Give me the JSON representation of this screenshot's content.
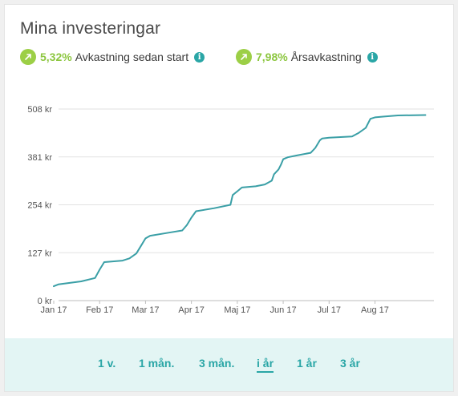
{
  "card": {
    "title": "Mina investeringar",
    "metrics": [
      {
        "value": "5,32%",
        "label": "Avkastning sedan start",
        "icon": "arrow-up-right-icon",
        "info_icon": "info-icon"
      },
      {
        "value": "7,98%",
        "label": "Årsavkastning",
        "icon": "arrow-up-right-icon",
        "info_icon": "info-icon"
      }
    ]
  },
  "colors": {
    "accent": "#2aa6a6",
    "positive": "#8cc63f",
    "line": "#3a9fa6",
    "footer_bg": "#e3f5f4"
  },
  "chart_data": {
    "type": "line",
    "ylim": [
      0,
      508
    ],
    "y_ticks": [
      0,
      127,
      254,
      381,
      508
    ],
    "y_tick_labels": [
      "0 kr",
      "127 kr",
      "254 kr",
      "381 kr",
      "508 kr"
    ],
    "x_tick_labels": [
      "Jan 17",
      "Feb 17",
      "Mar 17",
      "Apr 17",
      "Maj 17",
      "Jun 17",
      "Jul 17",
      "Aug 17"
    ],
    "x_range": [
      0,
      8.18
    ],
    "grid": true,
    "series": [
      {
        "x": [
          0,
          0.1,
          0.6,
          0.9,
          1.0,
          1.1,
          1.5,
          1.65,
          1.8,
          1.9,
          2.0,
          2.1,
          2.5,
          2.8,
          2.9,
          3.0,
          3.1,
          3.5,
          3.85,
          3.9,
          4.0,
          4.1,
          4.4,
          4.6,
          4.75,
          4.8,
          4.9,
          4.95,
          5.0,
          5.1,
          5.3,
          5.6,
          5.7,
          5.8,
          5.85,
          6.0,
          6.5,
          6.65,
          6.8,
          6.9,
          7.0,
          7.2,
          7.5,
          8.1
        ],
        "values": [
          38,
          43,
          51,
          60,
          82,
          102,
          106,
          112,
          125,
          145,
          165,
          172,
          180,
          186,
          200,
          220,
          237,
          245,
          254,
          280,
          290,
          300,
          303,
          308,
          318,
          335,
          348,
          360,
          375,
          380,
          385,
          392,
          405,
          425,
          430,
          432,
          435,
          445,
          458,
          482,
          486,
          488,
          491,
          492
        ]
      }
    ]
  },
  "footer": {
    "tabs": [
      {
        "label": "1 v.",
        "active": false
      },
      {
        "label": "1 mån.",
        "active": false
      },
      {
        "label": "3 mån.",
        "active": false
      },
      {
        "label": "i år",
        "active": true
      },
      {
        "label": "1 år",
        "active": false
      },
      {
        "label": "3 år",
        "active": false
      }
    ]
  }
}
